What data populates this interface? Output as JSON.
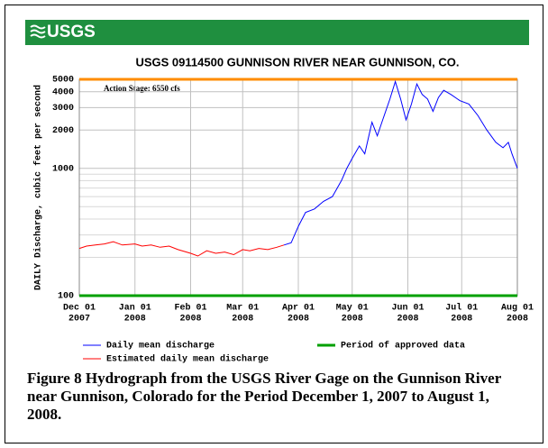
{
  "header": {
    "logo": "USGS"
  },
  "chart_data": {
    "type": "line",
    "title": "USGS 09114500 GUNNISON RIVER NEAR GUNNISON, CO.",
    "y_label": "DAILY Discharge, cubic feet per second",
    "annotation": "Action Stage: 6550 cfs",
    "log_y": true,
    "grid": true,
    "ylim": [
      100,
      5000
    ],
    "yticks": [
      100,
      1000,
      2000,
      3000,
      4000,
      5000
    ],
    "yminor": [
      200,
      300,
      400,
      500,
      600,
      700,
      800,
      900
    ],
    "xlim": [
      "2007-12-01",
      "2008-08-01"
    ],
    "xticks": [
      {
        "value": "2007-12-01",
        "label": [
          "Dec 01",
          "2007"
        ]
      },
      {
        "value": "2008-01-01",
        "label": [
          "Jan 01",
          "2008"
        ]
      },
      {
        "value": "2008-02-01",
        "label": [
          "Feb 01",
          "2008"
        ]
      },
      {
        "value": "2008-03-01",
        "label": [
          "Mar 01",
          "2008"
        ]
      },
      {
        "value": "2008-04-01",
        "label": [
          "Apr 01",
          "2008"
        ]
      },
      {
        "value": "2008-05-01",
        "label": [
          "May 01",
          "2008"
        ]
      },
      {
        "value": "2008-06-01",
        "label": [
          "Jun 01",
          "2008"
        ]
      },
      {
        "value": "2008-07-01",
        "label": [
          "Jul 01",
          "2008"
        ]
      },
      {
        "value": "2008-08-01",
        "label": [
          "Aug 01",
          "2008"
        ]
      }
    ],
    "series": [
      {
        "name": "Daily mean discharge",
        "color": "#0000ff",
        "x": [
          "2008-03-24",
          "2008-03-28",
          "2008-04-01",
          "2008-04-05",
          "2008-04-10",
          "2008-04-15",
          "2008-04-20",
          "2008-04-25",
          "2008-04-28",
          "2008-05-01",
          "2008-05-05",
          "2008-05-08",
          "2008-05-12",
          "2008-05-15",
          "2008-05-18",
          "2008-05-22",
          "2008-05-25",
          "2008-05-28",
          "2008-05-31",
          "2008-06-03",
          "2008-06-06",
          "2008-06-09",
          "2008-06-12",
          "2008-06-15",
          "2008-06-18",
          "2008-06-21",
          "2008-06-25",
          "2008-06-30",
          "2008-07-05",
          "2008-07-10",
          "2008-07-15",
          "2008-07-20",
          "2008-07-24",
          "2008-07-27",
          "2008-07-29",
          "2008-08-01"
        ],
        "values": [
          250,
          260,
          350,
          450,
          480,
          550,
          600,
          800,
          1000,
          1200,
          1500,
          1300,
          2300,
          1800,
          2400,
          3500,
          4800,
          3500,
          2400,
          3200,
          4600,
          3800,
          3500,
          2800,
          3600,
          4100,
          3800,
          3400,
          3200,
          2600,
          2000,
          1600,
          1450,
          1600,
          1300,
          1000
        ]
      },
      {
        "name": "Estimated daily mean discharge",
        "color": "#ff0000",
        "x": [
          "2007-12-01",
          "2007-12-05",
          "2007-12-10",
          "2007-12-15",
          "2007-12-20",
          "2007-12-25",
          "2008-01-01",
          "2008-01-05",
          "2008-01-10",
          "2008-01-15",
          "2008-01-20",
          "2008-01-25",
          "2008-02-01",
          "2008-02-05",
          "2008-02-10",
          "2008-02-15",
          "2008-02-20",
          "2008-02-25",
          "2008-03-01",
          "2008-03-05",
          "2008-03-10",
          "2008-03-15",
          "2008-03-20",
          "2008-03-24"
        ],
        "values": [
          235,
          245,
          250,
          255,
          265,
          250,
          255,
          245,
          250,
          240,
          245,
          230,
          215,
          205,
          225,
          215,
          220,
          210,
          230,
          225,
          235,
          230,
          240,
          250
        ]
      },
      {
        "name": "Period of approved data",
        "color": "#00a000",
        "x": [
          "2007-12-01",
          "2008-08-01"
        ],
        "values": [
          100,
          100
        ]
      }
    ]
  },
  "caption": "Figure 8 Hydrograph from the USGS River Gage on the Gunnison River near Gunnison, Colorado for the Period December 1, 2007 to August 1, 2008."
}
